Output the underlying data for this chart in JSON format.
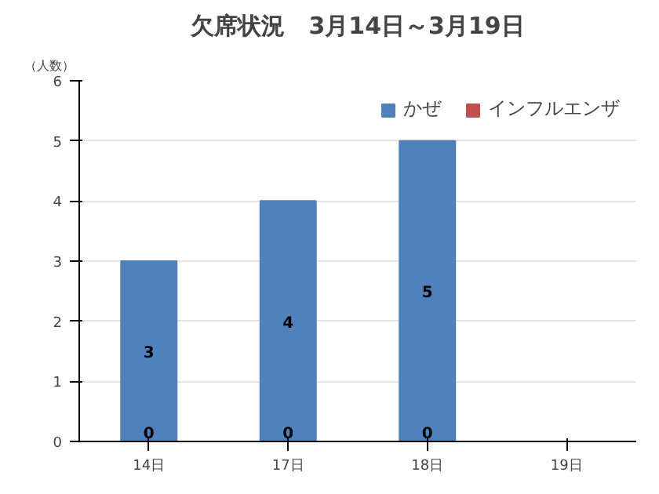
{
  "chart_data": {
    "type": "bar",
    "title": "欠席状況　3月14日～3月19日",
    "ylabel": "（人数）",
    "categories": [
      "14日",
      "17日",
      "18日",
      "19日"
    ],
    "stacked": true,
    "series": [
      {
        "name": "インフルエンザ",
        "color": "#c0504d",
        "values": [
          0,
          0,
          0,
          null
        ]
      },
      {
        "name": "かぜ",
        "color": "#4f81bd",
        "values": [
          3,
          4,
          5,
          null
        ]
      }
    ],
    "ylim": [
      0,
      6
    ],
    "yticks": [
      0,
      1,
      2,
      3,
      4,
      5,
      6
    ],
    "grid": "y",
    "legend": "top right",
    "data_labels": true
  }
}
